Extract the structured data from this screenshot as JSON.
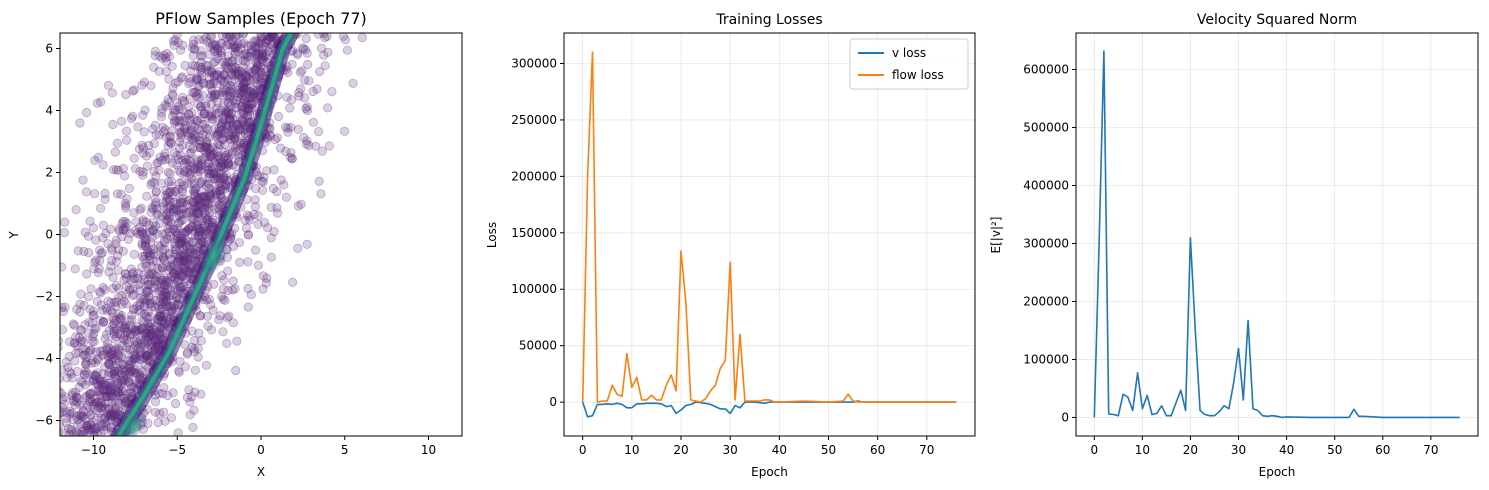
{
  "chart_data": [
    {
      "type": "scatter",
      "title": "PFlow Samples (Epoch 77)",
      "xlabel": "X",
      "ylabel": "Y",
      "xlim": [
        -12,
        12
      ],
      "ylim": [
        -6.5,
        6.5
      ],
      "xticks": [
        -10,
        -5,
        0,
        5,
        10
      ],
      "yticks": [
        -6,
        -4,
        -2,
        0,
        2,
        4,
        6
      ],
      "xtick_labels": [
        "−10",
        "−5",
        "0",
        "5",
        "10"
      ],
      "ytick_labels": [
        "−6",
        "−4",
        "−2",
        "0",
        "2",
        "4",
        "6"
      ],
      "point_color": "#5b2a7b",
      "ridge_colors": [
        "#3b0f70",
        "#2c6e8e",
        "#2fb47c"
      ],
      "ridge": [
        [
          -8.5,
          -6.5
        ],
        [
          -7,
          -5.2
        ],
        [
          -5.5,
          -3.8
        ],
        [
          -4,
          -2
        ],
        [
          -3,
          -0.8
        ],
        [
          -2,
          0.5
        ],
        [
          -1,
          1.8
        ],
        [
          -0.3,
          3
        ],
        [
          0.5,
          4.5
        ],
        [
          1.3,
          6
        ],
        [
          1.8,
          6.5
        ]
      ],
      "grid": false
    },
    {
      "type": "line",
      "title": "Training Losses",
      "xlabel": "Epoch",
      "ylabel": "Loss",
      "xlim": [
        -3.8,
        79.8
      ],
      "ylim": [
        -30000,
        327000
      ],
      "xticks": [
        0,
        10,
        20,
        30,
        40,
        50,
        60,
        70
      ],
      "yticks": [
        0,
        50000,
        100000,
        150000,
        200000,
        250000,
        300000
      ],
      "ytick_labels": [
        "0",
        "50000",
        "100000",
        "150000",
        "200000",
        "250000",
        "300000"
      ],
      "grid": true,
      "legend": "top-right",
      "series": [
        {
          "name": "v loss",
          "color": "#1f77b4",
          "x": [
            0,
            1,
            2,
            3,
            4,
            5,
            6,
            7,
            8,
            9,
            10,
            11,
            12,
            13,
            14,
            15,
            16,
            17,
            18,
            19,
            20,
            21,
            22,
            23,
            24,
            25,
            26,
            27,
            28,
            29,
            30,
            31,
            32,
            33,
            34,
            35,
            36,
            37,
            38,
            39,
            40,
            45,
            50,
            55,
            56,
            57,
            60,
            65,
            70,
            76
          ],
          "values": [
            0,
            -13000,
            -12000,
            -2000,
            -2000,
            -1500,
            -2000,
            -1000,
            -2000,
            -5000,
            -5000,
            -1500,
            -1500,
            -1000,
            -1000,
            -1000,
            -1500,
            -4000,
            -3000,
            -10000,
            -7000,
            -3000,
            -2000,
            0,
            -500,
            -1000,
            -2000,
            -4000,
            -6000,
            -6000,
            -10000,
            -3000,
            -5000,
            0,
            0,
            0,
            -500,
            -1000,
            0,
            0,
            0,
            0,
            0,
            0,
            1000,
            0,
            0,
            0,
            0,
            0
          ]
        },
        {
          "name": "flow loss",
          "color": "#ff7f0e",
          "x": [
            0,
            1,
            2,
            3,
            4,
            5,
            6,
            7,
            8,
            9,
            10,
            11,
            12,
            13,
            14,
            15,
            16,
            17,
            18,
            19,
            20,
            21,
            22,
            23,
            24,
            25,
            26,
            27,
            28,
            29,
            30,
            31,
            32,
            33,
            34,
            35,
            36,
            37,
            38,
            39,
            40,
            45,
            50,
            53,
            54,
            55,
            56,
            60,
            65,
            70,
            76
          ],
          "values": [
            0,
            200000,
            310000,
            0,
            1000,
            1000,
            15000,
            7000,
            5000,
            43000,
            13000,
            22000,
            2000,
            2000,
            6000,
            2000,
            2000,
            15000,
            24000,
            10000,
            134000,
            88000,
            2000,
            1000,
            0,
            3000,
            10000,
            15000,
            30000,
            37000,
            124000,
            2000,
            60000,
            1000,
            1000,
            1000,
            1000,
            2000,
            2000,
            0,
            0,
            1000,
            0,
            1000,
            7000,
            1000,
            0,
            0,
            0,
            0,
            0
          ]
        }
      ]
    },
    {
      "type": "line",
      "title": "Velocity Squared Norm",
      "xlabel": "Epoch",
      "ylabel": "E[|v|²]",
      "xlim": [
        -3.8,
        79.8
      ],
      "ylim": [
        -32000,
        663000
      ],
      "xticks": [
        0,
        10,
        20,
        30,
        40,
        50,
        60,
        70
      ],
      "yticks": [
        0,
        100000,
        200000,
        300000,
        400000,
        500000,
        600000
      ],
      "ytick_labels": [
        "0",
        "100000",
        "200000",
        "300000",
        "400000",
        "500000",
        "600000"
      ],
      "grid": true,
      "series": [
        {
          "color": "#1f77b4",
          "x": [
            0,
            1,
            2,
            3,
            4,
            5,
            6,
            7,
            8,
            9,
            10,
            11,
            12,
            13,
            14,
            15,
            16,
            17,
            18,
            19,
            20,
            21,
            22,
            23,
            24,
            25,
            26,
            27,
            28,
            29,
            30,
            31,
            32,
            33,
            34,
            35,
            36,
            37,
            38,
            39,
            40,
            45,
            50,
            53,
            54,
            55,
            56,
            60,
            65,
            70,
            76
          ],
          "values": [
            0,
            300000,
            632000,
            6000,
            5000,
            3000,
            40000,
            35000,
            12000,
            77000,
            15000,
            38000,
            5000,
            7000,
            20000,
            3000,
            3000,
            25000,
            47000,
            12000,
            310000,
            150000,
            12000,
            5000,
            3000,
            3000,
            10000,
            20000,
            15000,
            60000,
            119000,
            30000,
            167000,
            15000,
            12000,
            3000,
            2000,
            3000,
            2000,
            0,
            1000,
            0,
            0,
            0,
            14000,
            2000,
            2000,
            0,
            0,
            0,
            0
          ]
        }
      ]
    }
  ]
}
